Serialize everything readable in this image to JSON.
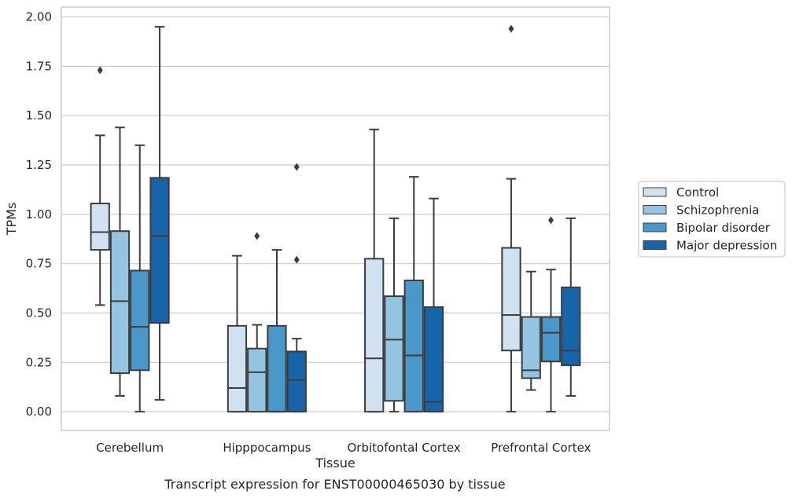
{
  "chart_data": {
    "type": "boxplot",
    "caption": "Transcript expression for ENST00000465030 by tissue",
    "xlabel": "Tissue",
    "ylabel": "TPMs",
    "ylim": [
      -0.095,
      2.05
    ],
    "y_ticks": [
      "0.00",
      "0.25",
      "0.50",
      "0.75",
      "1.00",
      "1.25",
      "1.50",
      "1.75",
      "2.00"
    ],
    "grid": true,
    "legend_position": "right",
    "categories": [
      "Cerebellum",
      "Hipppocampus",
      "Orbitofontal Cortex",
      "Prefrontal Cortex"
    ],
    "series": [
      {
        "name": "Control",
        "color": "#d0e1f2",
        "boxes": [
          {
            "whislo": 0.54,
            "q1": 0.82,
            "med": 0.91,
            "q3": 1.055,
            "whishi": 1.4,
            "fliers": [
              1.73
            ]
          },
          {
            "whislo": 0.0,
            "q1": 0.0,
            "med": 0.12,
            "q3": 0.435,
            "whishi": 0.79,
            "fliers": []
          },
          {
            "whislo": 0.0,
            "q1": 0.0,
            "med": 0.27,
            "q3": 0.775,
            "whishi": 1.43,
            "fliers": []
          },
          {
            "whislo": 0.0,
            "q1": 0.31,
            "med": 0.49,
            "q3": 0.83,
            "whishi": 1.18,
            "fliers": [
              1.94
            ]
          }
        ]
      },
      {
        "name": "Schizophrenia",
        "color": "#94c4df",
        "boxes": [
          {
            "whislo": 0.08,
            "q1": 0.195,
            "med": 0.56,
            "q3": 0.915,
            "whishi": 1.44,
            "fliers": []
          },
          {
            "whislo": 0.0,
            "q1": 0.0,
            "med": 0.2,
            "q3": 0.32,
            "whishi": 0.44,
            "fliers": [
              0.89
            ]
          },
          {
            "whislo": 0.0,
            "q1": 0.055,
            "med": 0.365,
            "q3": 0.585,
            "whishi": 0.98,
            "fliers": []
          },
          {
            "whislo": 0.11,
            "q1": 0.17,
            "med": 0.21,
            "q3": 0.48,
            "whishi": 0.71,
            "fliers": []
          }
        ]
      },
      {
        "name": "Bipolar disorder",
        "color": "#4a98c9",
        "boxes": [
          {
            "whislo": 0.0,
            "q1": 0.21,
            "med": 0.43,
            "q3": 0.715,
            "whishi": 1.35,
            "fliers": []
          },
          {
            "whislo": 0.0,
            "q1": 0.0,
            "med": 0.0,
            "q3": 0.435,
            "whishi": 0.82,
            "fliers": []
          },
          {
            "whislo": 0.0,
            "q1": 0.0,
            "med": 0.285,
            "q3": 0.665,
            "whishi": 1.19,
            "fliers": []
          },
          {
            "whislo": 0.0,
            "q1": 0.255,
            "med": 0.4,
            "q3": 0.48,
            "whishi": 0.72,
            "fliers": [
              0.97
            ]
          }
        ]
      },
      {
        "name": "Major depression",
        "color": "#1764ab",
        "boxes": [
          {
            "whislo": 0.06,
            "q1": 0.45,
            "med": 0.89,
            "q3": 1.185,
            "whishi": 1.95,
            "fliers": []
          },
          {
            "whislo": 0.0,
            "q1": 0.0,
            "med": 0.16,
            "q3": 0.305,
            "whishi": 0.37,
            "fliers": [
              1.24,
              0.77
            ]
          },
          {
            "whislo": 0.0,
            "q1": 0.0,
            "med": 0.05,
            "q3": 0.53,
            "whishi": 1.08,
            "fliers": []
          },
          {
            "whislo": 0.08,
            "q1": 0.235,
            "med": 0.31,
            "q3": 0.63,
            "whishi": 0.98,
            "fliers": []
          }
        ]
      }
    ]
  }
}
